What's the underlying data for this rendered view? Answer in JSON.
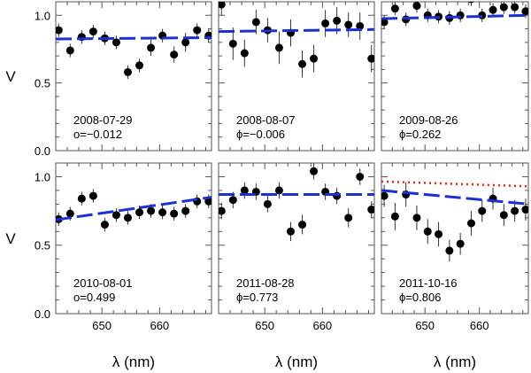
{
  "chart_data": [
    {
      "type": "scatter",
      "date": "2008-07-29",
      "phase": "o=−0.012",
      "x": [
        642.5,
        644.5,
        646.5,
        648.5,
        650.5,
        652.5,
        654.5,
        656.5,
        658.5,
        660.5,
        662.5,
        664.5,
        666.5,
        668.5
      ],
      "y": [
        0.89,
        0.74,
        0.84,
        0.88,
        0.83,
        0.8,
        0.58,
        0.63,
        0.76,
        0.85,
        0.71,
        0.8,
        0.89,
        0.85
      ],
      "yerr": [
        0.05,
        0.05,
        0.05,
        0.05,
        0.05,
        0.05,
        0.05,
        0.05,
        0.06,
        0.05,
        0.06,
        0.07,
        0.05,
        0.05
      ],
      "fit": [
        [
          642,
          0.825
        ],
        [
          669,
          0.835
        ]
      ],
      "fit_style": "dashed"
    },
    {
      "type": "scatter",
      "date": "2008-08-07",
      "phase": "ϕ=−0.006",
      "x": [
        642.5,
        644.5,
        646.5,
        648.5,
        650.5,
        652.5,
        654.5,
        656.5,
        658.5,
        660.5,
        662.5,
        664.5,
        666.5,
        668.5
      ],
      "y": [
        1.08,
        0.79,
        0.72,
        0.95,
        0.89,
        0.76,
        0.87,
        0.64,
        0.68,
        0.94,
        0.96,
        0.93,
        0.92,
        0.68
      ],
      "yerr": [
        0.08,
        0.12,
        0.1,
        0.09,
        0.09,
        0.12,
        0.1,
        0.1,
        0.1,
        0.1,
        0.1,
        0.09,
        0.1,
        0.1
      ],
      "fit": [
        [
          642,
          0.88
        ],
        [
          669,
          0.895
        ]
      ],
      "fit_style": "dashed"
    },
    {
      "type": "scatter",
      "date": "2009-08-26",
      "phase": "ϕ=0.262",
      "x": [
        642.5,
        644.5,
        646.5,
        648.5,
        650.5,
        652.5,
        654.5,
        656.5,
        658.5,
        660.5,
        662.5,
        664.5,
        666.5,
        668.5
      ],
      "y": [
        0.95,
        1.05,
        0.97,
        1.07,
        1.0,
        0.99,
        0.98,
        1.0,
        1.12,
        1.0,
        1.04,
        1.06,
        1.06,
        1.03
      ],
      "yerr": [
        0.05,
        0.05,
        0.05,
        0.05,
        0.05,
        0.05,
        0.05,
        0.05,
        0.05,
        0.05,
        0.05,
        0.05,
        0.05,
        0.05
      ],
      "fit": [
        [
          642,
          0.975
        ],
        [
          669,
          1.0
        ]
      ],
      "fit_style": "dashed"
    },
    {
      "type": "scatter",
      "date": "2010-08-01",
      "phase": "o=0.499",
      "x": [
        642.5,
        644.5,
        646.5,
        648.5,
        650.5,
        652.5,
        654.5,
        656.5,
        658.5,
        660.5,
        662.5,
        664.5,
        666.5,
        668.5
      ],
      "y": [
        0.69,
        0.73,
        0.84,
        0.86,
        0.65,
        0.72,
        0.7,
        0.74,
        0.75,
        0.74,
        0.73,
        0.75,
        0.82,
        0.82
      ],
      "yerr": [
        0.05,
        0.05,
        0.05,
        0.05,
        0.05,
        0.05,
        0.05,
        0.05,
        0.05,
        0.05,
        0.05,
        0.05,
        0.05,
        0.05
      ],
      "fit": [
        [
          642,
          0.685
        ],
        [
          669,
          0.85
        ]
      ],
      "fit_style": "dashed"
    },
    {
      "type": "scatter",
      "date": "2011-08-28",
      "phase": "ϕ=0.773",
      "x": [
        642.5,
        644.5,
        646.5,
        648.5,
        650.5,
        652.5,
        654.5,
        656.5,
        658.5,
        660.5,
        662.5,
        664.5,
        666.5,
        668.5
      ],
      "y": [
        0.75,
        0.83,
        0.9,
        0.89,
        0.8,
        0.9,
        0.6,
        0.65,
        1.04,
        0.89,
        0.86,
        0.7,
        1.0,
        0.76
      ],
      "yerr": [
        0.06,
        0.06,
        0.06,
        0.06,
        0.06,
        0.06,
        0.07,
        0.07,
        0.06,
        0.06,
        0.06,
        0.07,
        0.06,
        0.06
      ],
      "fit": [
        [
          642,
          0.87
        ],
        [
          669,
          0.87
        ]
      ],
      "fit_style": "dashed"
    },
    {
      "type": "scatter",
      "date": "2011-10-16",
      "phase": "ϕ=0.806",
      "x": [
        642.5,
        644.5,
        646.5,
        648.5,
        650.5,
        652.5,
        654.5,
        656.5,
        658.5,
        660.5,
        662.5,
        664.5,
        666.5,
        668.5
      ],
      "y": [
        0.86,
        0.71,
        0.87,
        0.7,
        0.6,
        0.58,
        0.46,
        0.51,
        0.66,
        0.75,
        0.84,
        0.72,
        0.75,
        0.76
      ],
      "yerr": [
        0.08,
        0.1,
        0.09,
        0.09,
        0.09,
        0.09,
        0.08,
        0.08,
        0.09,
        0.08,
        0.08,
        0.08,
        0.08,
        0.08
      ],
      "fit": [
        [
          642,
          0.9
        ],
        [
          669,
          0.8
        ]
      ],
      "fit_style": "dashed",
      "fit2": [
        [
          642,
          0.965
        ],
        [
          669,
          0.93
        ]
      ],
      "fit2_style": "dotted"
    }
  ],
  "axes": {
    "xlim": [
      642,
      669
    ],
    "ylim": [
      0.0,
      1.1
    ],
    "xticks": [
      650,
      660
    ],
    "yticks": [
      0.0,
      0.5,
      1.0
    ],
    "ytick_labels": [
      "0.0",
      "0.5",
      "1.0"
    ],
    "xlabel": "λ (nm)",
    "ylabel": "V",
    "grid": false
  },
  "colors": {
    "points": "#000000",
    "fit": "#1d2fd0",
    "fit2": "#e0241b",
    "frame": "#555555"
  }
}
